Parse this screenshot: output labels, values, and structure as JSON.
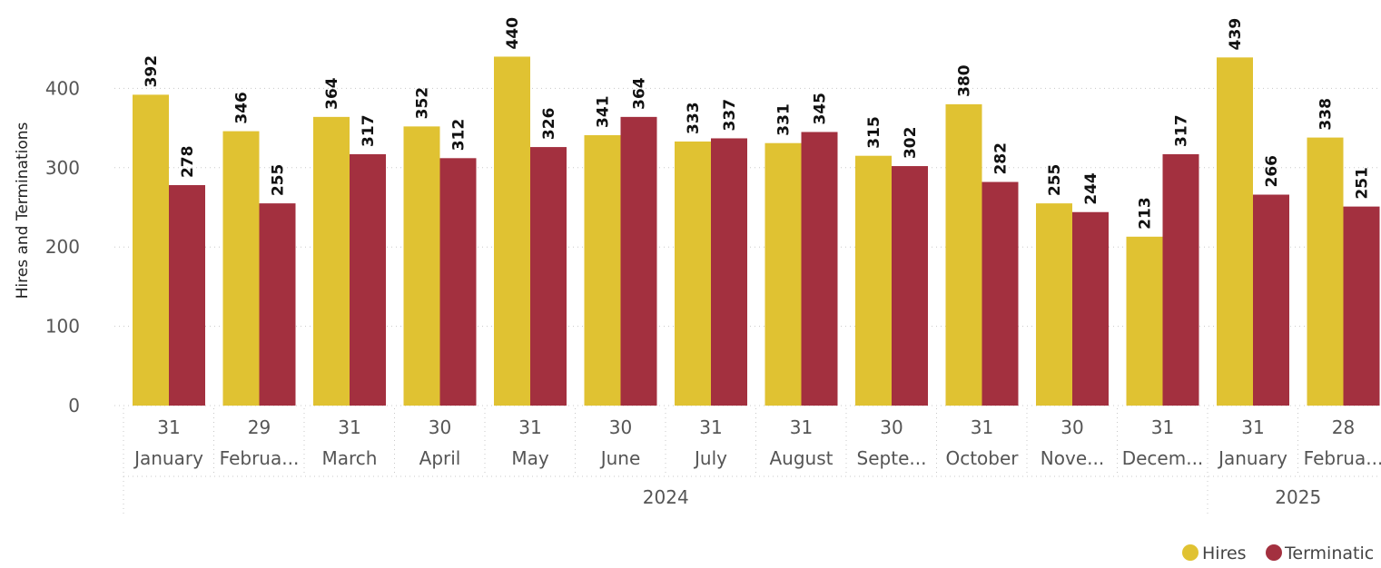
{
  "chart_data": {
    "type": "bar",
    "ylabel": "Hires and Terminations",
    "ylim": [
      0,
      440
    ],
    "yticks": [
      0,
      100,
      200,
      300,
      400
    ],
    "grid": "horizontal dotted",
    "legend_position": "bottom-right",
    "categories": [
      {
        "day": "31",
        "month": "January"
      },
      {
        "day": "29",
        "month": "Februa..."
      },
      {
        "day": "31",
        "month": "March"
      },
      {
        "day": "30",
        "month": "April"
      },
      {
        "day": "31",
        "month": "May"
      },
      {
        "day": "30",
        "month": "June"
      },
      {
        "day": "31",
        "month": "July"
      },
      {
        "day": "31",
        "month": "August"
      },
      {
        "day": "30",
        "month": "Septe..."
      },
      {
        "day": "31",
        "month": "October"
      },
      {
        "day": "30",
        "month": "Nove..."
      },
      {
        "day": "31",
        "month": "Decem..."
      },
      {
        "day": "31",
        "month": "January"
      },
      {
        "day": "28",
        "month": "Februa..."
      }
    ],
    "years": [
      {
        "label": "2024",
        "from": 0,
        "to": 11
      },
      {
        "label": "2025",
        "from": 12,
        "to": 13
      }
    ],
    "series": [
      {
        "name": "Hires",
        "color": "#E0C232",
        "values": [
          392,
          346,
          364,
          352,
          440,
          341,
          333,
          331,
          315,
          380,
          255,
          213,
          439,
          338
        ]
      },
      {
        "name": "Terminatic",
        "color": "#A3303F",
        "values": [
          278,
          255,
          317,
          312,
          326,
          364,
          337,
          345,
          302,
          282,
          244,
          317,
          266,
          251
        ]
      }
    ]
  }
}
